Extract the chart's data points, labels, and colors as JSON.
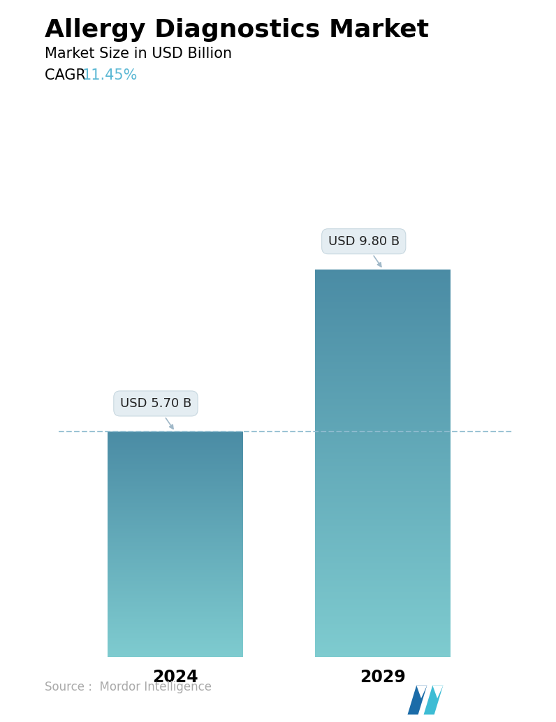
{
  "title": "Allergy Diagnostics Market",
  "subtitle": "Market Size in USD Billion",
  "cagr_label": "CAGR  ",
  "cagr_value": "11.45%",
  "cagr_color": "#5BB8D4",
  "categories": [
    "2024",
    "2029"
  ],
  "values": [
    5.7,
    9.8
  ],
  "bar_labels": [
    "USD 5.70 B",
    "USD 9.80 B"
  ],
  "bar_color_top": [
    "#4A8BA4",
    "#4A8BA4"
  ],
  "bar_color_bottom": [
    "#7ECBCF",
    "#7ECBCF"
  ],
  "dashed_line_y": 5.7,
  "dashed_line_color": "#90BDD0",
  "ylim": [
    0,
    11.5
  ],
  "source_text": "Source :  Mordor Intelligence",
  "source_color": "#AAAAAA",
  "bg_color": "#FFFFFF",
  "title_fontsize": 26,
  "subtitle_fontsize": 15,
  "cagr_fontsize": 15,
  "label_fontsize": 13,
  "bar_width": 0.28,
  "x_positions": [
    0.27,
    0.7
  ]
}
